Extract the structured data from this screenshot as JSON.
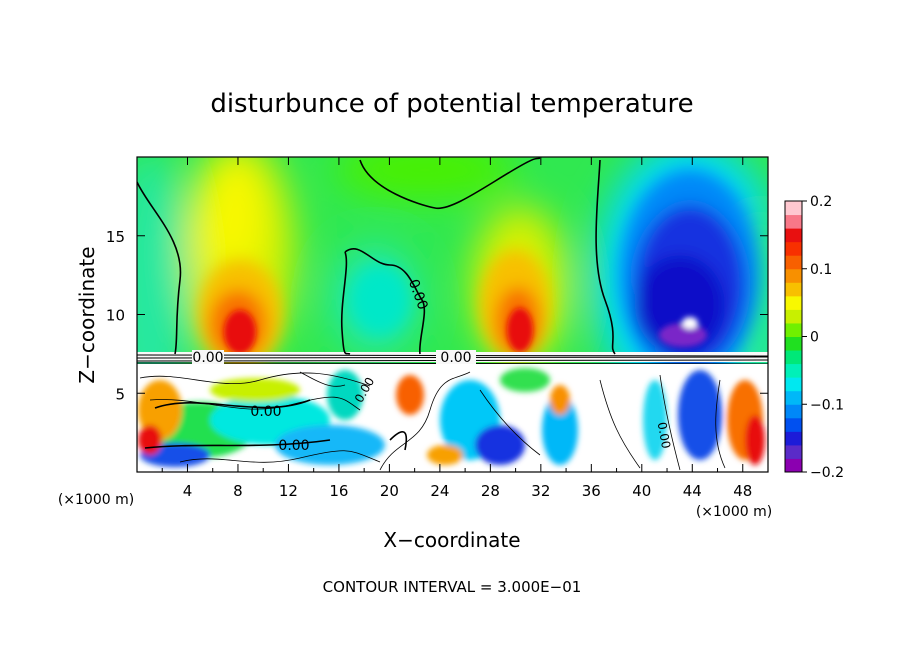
{
  "chart_data": {
    "type": "heatmap",
    "title": "disturbunce of potential temperature",
    "xlabel": "X−coordinate",
    "ylabel": "Z−coordinate",
    "x_unit_left": "(×1000 m)",
    "x_unit_right": "(×1000 m)",
    "footer": "CONTOUR INTERVAL = 3.000E−01",
    "xlim": [
      0,
      50
    ],
    "ylim": [
      0,
      20
    ],
    "x_ticks": [
      "4",
      "8",
      "12",
      "16",
      "20",
      "24",
      "28",
      "32",
      "36",
      "40",
      "44",
      "48"
    ],
    "y_ticks": [
      "5",
      "10",
      "15"
    ],
    "colorbar": {
      "range": [
        -0.2,
        0.2
      ],
      "tick_labels": [
        "0.2",
        "0.1",
        "0",
        "−0.1",
        "−0.2"
      ],
      "colors": [
        "#8B00B0",
        "#5A2BC8",
        "#1C1CD8",
        "#0050F0",
        "#0088F8",
        "#00B8F8",
        "#00E8F0",
        "#00F0B8",
        "#00E878",
        "#20E020",
        "#70F000",
        "#C8F000",
        "#F8F800",
        "#F8C000",
        "#F89000",
        "#F86000",
        "#F83000",
        "#E81010",
        "#F87888",
        "#FFC8D0"
      ]
    },
    "contour_labels": [
      "0.00",
      "0.00",
      "0.00",
      "0.00",
      "0.00",
      "0.00",
      "0.00"
    ],
    "features": [
      {
        "x": 9.5,
        "z": 10,
        "value": 0.12
      },
      {
        "x": 29.5,
        "z": 10.5,
        "value": 0.11
      },
      {
        "x": 44,
        "z": 12,
        "value": -0.17
      },
      {
        "x": 24,
        "z": 17,
        "value": 0.02
      },
      {
        "x": 19,
        "z": 10,
        "value": -0.04
      },
      {
        "x": 2,
        "z": 12,
        "value": -0.03
      }
    ]
  }
}
